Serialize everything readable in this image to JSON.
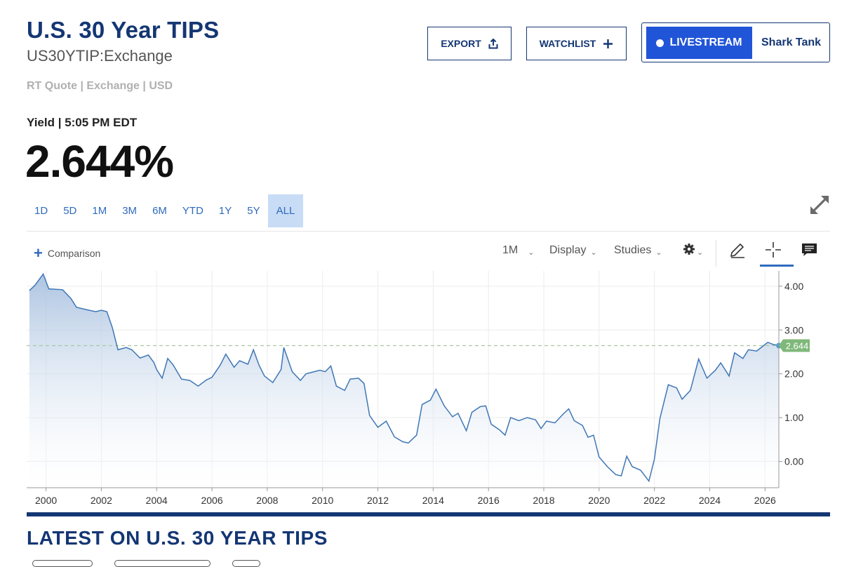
{
  "header": {
    "title": "U.S. 30 Year TIPS",
    "symbol": "US30YTIP:Exchange",
    "quote_source": "RT Quote | Exchange | USD",
    "yield_label": "Yield | 5:05 PM EDT",
    "yield_value": "2.644%"
  },
  "buttons": {
    "export": "EXPORT",
    "watchlist": "WATCHLIST",
    "livestream": "LIVESTREAM",
    "show": "Shark Tank"
  },
  "ranges": [
    "1D",
    "5D",
    "1M",
    "3M",
    "6M",
    "YTD",
    "1Y",
    "5Y",
    "ALL"
  ],
  "active_range": "ALL",
  "toolbar": {
    "comparison": "Comparison",
    "interval": "1M",
    "display": "Display",
    "studies": "Studies"
  },
  "colors": {
    "brand": "#143673",
    "accent": "#2f6bbd",
    "live": "#2155d8",
    "line": "#3f77b5",
    "last_price": "#7fb87a"
  },
  "chart_data": {
    "type": "area",
    "x_unit": "year",
    "xlim": [
      1999.3,
      2026.5
    ],
    "ylim": [
      -0.6,
      4.35
    ],
    "yticks": [
      4.0,
      3.0,
      2.0,
      1.0,
      0.0
    ],
    "ytick_labels": [
      "4.00",
      "3.00",
      "2.00",
      "1.00",
      "0.00"
    ],
    "xticks": [
      2000,
      2002,
      2004,
      2006,
      2008,
      2010,
      2012,
      2014,
      2016,
      2018,
      2020,
      2022,
      2024,
      2026
    ],
    "xtick_labels": [
      "2000",
      "2002",
      "2004",
      "2006",
      "2008",
      "2010",
      "2012",
      "2014",
      "2016",
      "2018",
      "2020",
      "2022",
      "2024",
      "2026"
    ],
    "last_value": 2.644,
    "last_label": "2.644",
    "grid": true,
    "points": [
      [
        1999.4,
        3.9
      ],
      [
        1999.6,
        4.02
      ],
      [
        1999.9,
        4.28
      ],
      [
        2000.1,
        3.94
      ],
      [
        2000.6,
        3.92
      ],
      [
        2000.9,
        3.72
      ],
      [
        2001.1,
        3.52
      ],
      [
        2001.5,
        3.46
      ],
      [
        2001.8,
        3.42
      ],
      [
        2002.0,
        3.45
      ],
      [
        2002.2,
        3.42
      ],
      [
        2002.4,
        3.05
      ],
      [
        2002.6,
        2.55
      ],
      [
        2002.9,
        2.6
      ],
      [
        2003.1,
        2.55
      ],
      [
        2003.4,
        2.36
      ],
      [
        2003.7,
        2.43
      ],
      [
        2003.9,
        2.26
      ],
      [
        2004.0,
        2.1
      ],
      [
        2004.2,
        1.9
      ],
      [
        2004.4,
        2.35
      ],
      [
        2004.6,
        2.2
      ],
      [
        2004.9,
        1.88
      ],
      [
        2005.2,
        1.85
      ],
      [
        2005.5,
        1.72
      ],
      [
        2005.8,
        1.86
      ],
      [
        2006.0,
        1.92
      ],
      [
        2006.3,
        2.2
      ],
      [
        2006.5,
        2.45
      ],
      [
        2006.8,
        2.15
      ],
      [
        2007.0,
        2.3
      ],
      [
        2007.3,
        2.22
      ],
      [
        2007.5,
        2.55
      ],
      [
        2007.7,
        2.2
      ],
      [
        2007.9,
        1.95
      ],
      [
        2008.2,
        1.8
      ],
      [
        2008.5,
        2.1
      ],
      [
        2008.6,
        2.6
      ],
      [
        2008.9,
        2.05
      ],
      [
        2009.2,
        1.85
      ],
      [
        2009.4,
        2.0
      ],
      [
        2009.7,
        2.05
      ],
      [
        2009.9,
        2.08
      ],
      [
        2010.1,
        2.05
      ],
      [
        2010.3,
        2.18
      ],
      [
        2010.5,
        1.72
      ],
      [
        2010.8,
        1.62
      ],
      [
        2011.0,
        1.88
      ],
      [
        2011.3,
        1.9
      ],
      [
        2011.5,
        1.78
      ],
      [
        2011.7,
        1.05
      ],
      [
        2012.0,
        0.78
      ],
      [
        2012.3,
        0.92
      ],
      [
        2012.6,
        0.56
      ],
      [
        2012.9,
        0.45
      ],
      [
        2013.1,
        0.42
      ],
      [
        2013.4,
        0.6
      ],
      [
        2013.6,
        1.3
      ],
      [
        2013.9,
        1.4
      ],
      [
        2014.1,
        1.65
      ],
      [
        2014.4,
        1.27
      ],
      [
        2014.7,
        1.02
      ],
      [
        2014.9,
        1.1
      ],
      [
        2015.2,
        0.7
      ],
      [
        2015.4,
        1.12
      ],
      [
        2015.7,
        1.25
      ],
      [
        2015.9,
        1.27
      ],
      [
        2016.1,
        0.85
      ],
      [
        2016.4,
        0.72
      ],
      [
        2016.6,
        0.6
      ],
      [
        2016.8,
        1.0
      ],
      [
        2017.1,
        0.93
      ],
      [
        2017.4,
        1.0
      ],
      [
        2017.7,
        0.95
      ],
      [
        2017.9,
        0.75
      ],
      [
        2018.1,
        0.92
      ],
      [
        2018.4,
        0.88
      ],
      [
        2018.7,
        1.08
      ],
      [
        2018.9,
        1.2
      ],
      [
        2019.1,
        0.93
      ],
      [
        2019.4,
        0.82
      ],
      [
        2019.6,
        0.55
      ],
      [
        2019.8,
        0.6
      ],
      [
        2020.0,
        0.1
      ],
      [
        2020.3,
        -0.12
      ],
      [
        2020.6,
        -0.3
      ],
      [
        2020.8,
        -0.33
      ],
      [
        2021.0,
        0.12
      ],
      [
        2021.2,
        -0.12
      ],
      [
        2021.5,
        -0.2
      ],
      [
        2021.8,
        -0.45
      ],
      [
        2022.0,
        0.05
      ],
      [
        2022.2,
        0.98
      ],
      [
        2022.5,
        1.75
      ],
      [
        2022.8,
        1.68
      ],
      [
        2023.0,
        1.42
      ],
      [
        2023.3,
        1.62
      ],
      [
        2023.6,
        2.34
      ],
      [
        2023.9,
        1.9
      ],
      [
        2024.2,
        2.08
      ],
      [
        2024.4,
        2.25
      ],
      [
        2024.7,
        1.95
      ],
      [
        2024.9,
        2.48
      ],
      [
        2025.2,
        2.35
      ],
      [
        2025.4,
        2.55
      ],
      [
        2025.7,
        2.52
      ],
      [
        2025.9,
        2.62
      ],
      [
        2026.1,
        2.72
      ],
      [
        2026.3,
        2.67
      ],
      [
        2026.5,
        2.644
      ]
    ]
  }
}
